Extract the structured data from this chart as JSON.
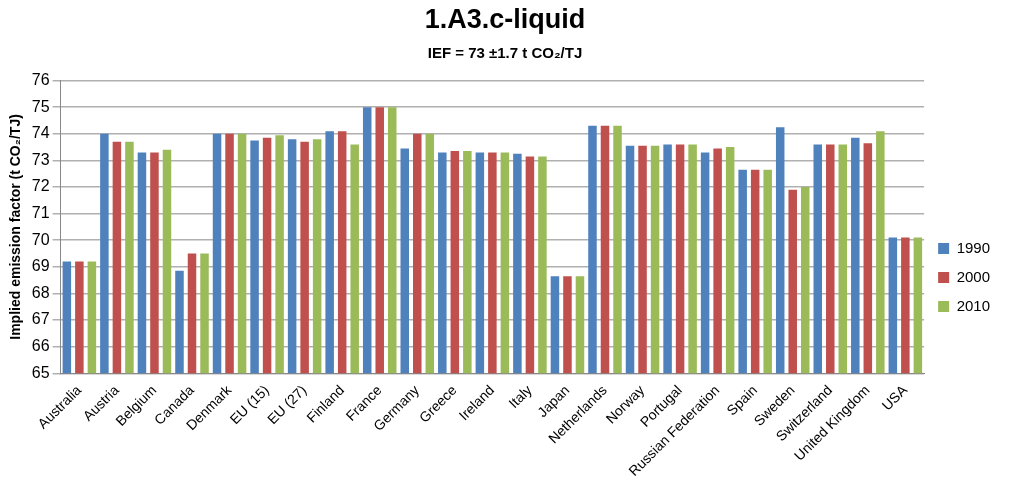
{
  "chart_data": {
    "type": "bar",
    "title": "1.A3.c-liquid",
    "subtitle": "IEF = 73 ±1.7 t CO₂/TJ",
    "ylabel": "Implied emission factor (t CO₂/TJ)",
    "categories": [
      "Australia",
      "Austria",
      "Belgium",
      "Canada",
      "Denmark",
      "EU (15)",
      "EU (27)",
      "Finland",
      "France",
      "Germany",
      "Greece",
      "Ireland",
      "Italy",
      "Japan",
      "Netherlands",
      "Norway",
      "Portugal",
      "Russian Federation",
      "Spain",
      "Sweden",
      "Switzerland",
      "United Kingdom",
      "USA"
    ],
    "series": [
      {
        "name": "1990",
        "color": "#4f81bd",
        "values": [
          69.2,
          74.0,
          73.3,
          68.85,
          74.0,
          73.75,
          73.8,
          74.1,
          75.0,
          73.45,
          73.3,
          73.3,
          73.25,
          68.65,
          74.3,
          73.55,
          73.6,
          73.3,
          72.65,
          74.25,
          73.6,
          73.85,
          70.1
        ]
      },
      {
        "name": "2000",
        "color": "#c0504d",
        "values": [
          69.2,
          73.7,
          73.3,
          69.5,
          74.0,
          73.85,
          73.7,
          74.1,
          75.0,
          74.0,
          73.35,
          73.3,
          73.15,
          68.65,
          74.3,
          73.55,
          73.6,
          73.45,
          72.65,
          71.9,
          73.6,
          73.65,
          70.1
        ]
      },
      {
        "name": "2010",
        "color": "#9bbb59",
        "values": [
          69.2,
          73.7,
          73.4,
          69.5,
          74.0,
          73.95,
          73.8,
          73.6,
          75.0,
          74.0,
          73.35,
          73.3,
          73.15,
          68.65,
          74.3,
          73.55,
          73.6,
          73.5,
          72.65,
          72.0,
          73.6,
          74.1,
          70.1
        ]
      }
    ],
    "ylim": [
      65,
      76
    ],
    "yticks": [
      65,
      66,
      67,
      68,
      69,
      70,
      71,
      72,
      73,
      74,
      75,
      76
    ],
    "grid": "y",
    "legend": "right"
  }
}
